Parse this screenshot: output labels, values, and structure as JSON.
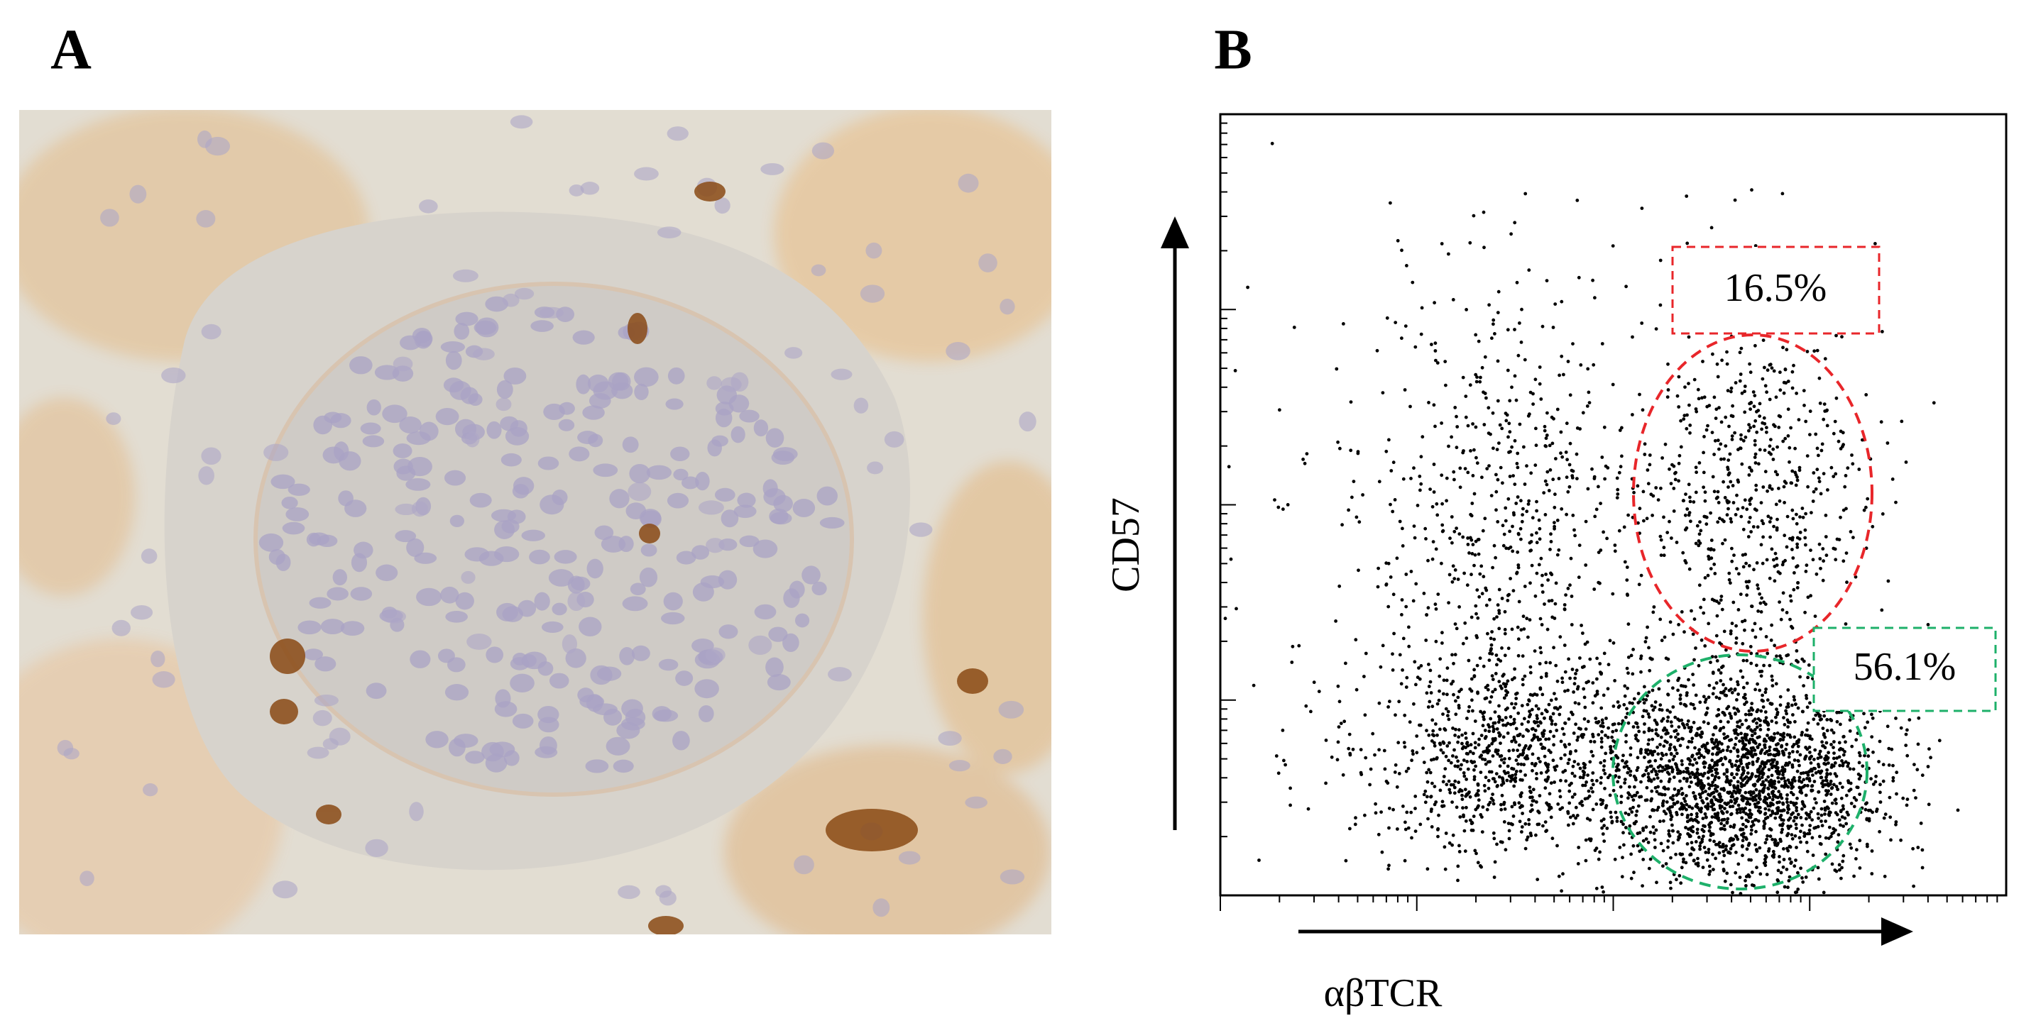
{
  "panel_a": {
    "label": "A"
  },
  "panel_b": {
    "label": "B",
    "y_axis_label": "CD57",
    "x_axis_label": "αβTCR",
    "gates": [
      {
        "label": "16.5%"
      },
      {
        "label": "56.1%"
      }
    ]
  }
}
